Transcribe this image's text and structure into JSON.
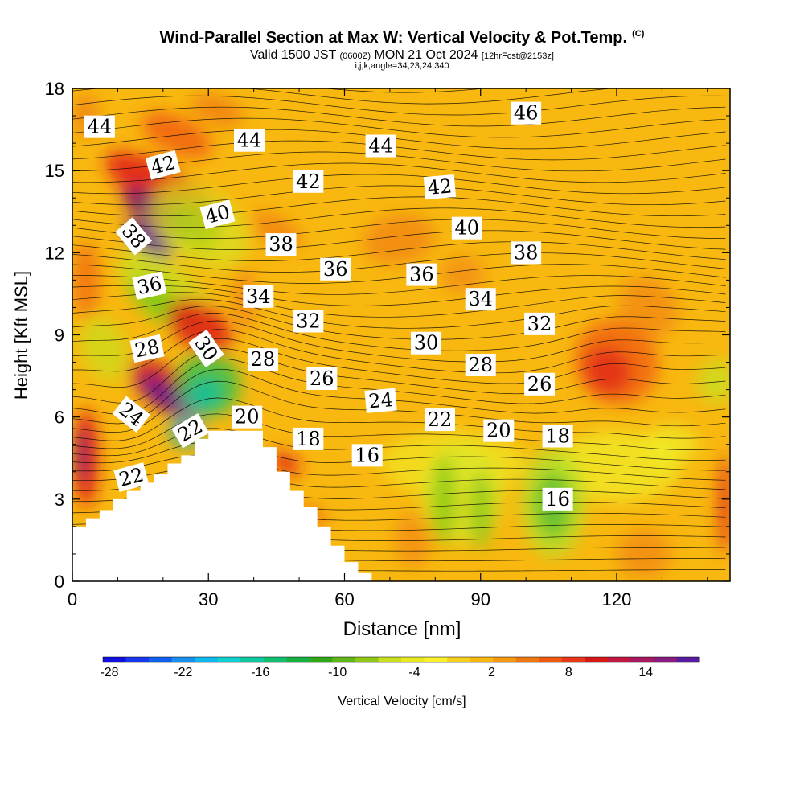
{
  "header": {
    "title": "Wind-Parallel Section at Max W: Vertical Velocity & Pot.Temp.",
    "copyright": "(C)",
    "valid_prefix": "Valid 1500 JST",
    "valid_utc": "(0600Z)",
    "valid_date": "MON 21 Oct 2024",
    "forecast": "[12hrFcst@2153z]",
    "indices": "i,j,k,angle=34,23,24,340"
  },
  "chart_data": {
    "type": "heatmap",
    "xlabel": "Distance [nm]",
    "ylabel": "Height [Kft MSL]",
    "xlim": [
      0,
      145
    ],
    "ylim": [
      0,
      18
    ],
    "x_ticks": [
      0,
      30,
      60,
      90,
      120
    ],
    "y_ticks": [
      0,
      3,
      6,
      9,
      12,
      15,
      18
    ],
    "x_tick_labels": [
      "0",
      "30",
      "60",
      "90",
      "120"
    ],
    "y_tick_labels": [
      "0",
      "3",
      "6",
      "9",
      "12",
      "15",
      "18"
    ],
    "terrain": [
      [
        0,
        2
      ],
      [
        3,
        2
      ],
      [
        3,
        2.3
      ],
      [
        6,
        2.3
      ],
      [
        6,
        2.6
      ],
      [
        9,
        2.6
      ],
      [
        9,
        3
      ],
      [
        12,
        3
      ],
      [
        12,
        3.3
      ],
      [
        15,
        3.3
      ],
      [
        15,
        3.6
      ],
      [
        18,
        3.6
      ],
      [
        18,
        3.9
      ],
      [
        21,
        3.9
      ],
      [
        21,
        4.3
      ],
      [
        24,
        4.3
      ],
      [
        24,
        4.6
      ],
      [
        27,
        4.6
      ],
      [
        27,
        5.2
      ],
      [
        30,
        5.2
      ],
      [
        30,
        5.5
      ],
      [
        42,
        5.5
      ],
      [
        42,
        4.9
      ],
      [
        45,
        4.9
      ],
      [
        45,
        4.0
      ],
      [
        48,
        4.0
      ],
      [
        48,
        3.3
      ],
      [
        51,
        3.3
      ],
      [
        51,
        2.7
      ],
      [
        54,
        2.7
      ],
      [
        54,
        2.0
      ],
      [
        57,
        2.0
      ],
      [
        57,
        1.3
      ],
      [
        60,
        1.3
      ],
      [
        60,
        0.7
      ],
      [
        63,
        0.7
      ],
      [
        63,
        0.3
      ],
      [
        66,
        0.3
      ],
      [
        66,
        0
      ]
    ],
    "theta_labels": [
      {
        "text": "44",
        "x": 6,
        "y": 16.6,
        "rot": 0
      },
      {
        "text": "42",
        "x": 20,
        "y": 15.2,
        "rot": -15
      },
      {
        "text": "38",
        "x": 13.5,
        "y": 12.6,
        "rot": 50
      },
      {
        "text": "40",
        "x": 32,
        "y": 13.4,
        "rot": -15
      },
      {
        "text": "44",
        "x": 39,
        "y": 16.1,
        "rot": 0
      },
      {
        "text": "42",
        "x": 52,
        "y": 14.6,
        "rot": 0
      },
      {
        "text": "44",
        "x": 68,
        "y": 15.9,
        "rot": 0
      },
      {
        "text": "42",
        "x": 81,
        "y": 14.4,
        "rot": -5
      },
      {
        "text": "46",
        "x": 100,
        "y": 17.1,
        "rot": 0
      },
      {
        "text": "40",
        "x": 87,
        "y": 12.9,
        "rot": 0
      },
      {
        "text": "38",
        "x": 46,
        "y": 12.3,
        "rot": 0
      },
      {
        "text": "38",
        "x": 100,
        "y": 12.0,
        "rot": 0
      },
      {
        "text": "36",
        "x": 17,
        "y": 10.8,
        "rot": -12
      },
      {
        "text": "36",
        "x": 58,
        "y": 11.4,
        "rot": 0
      },
      {
        "text": "36",
        "x": 77,
        "y": 11.2,
        "rot": 0
      },
      {
        "text": "34",
        "x": 41,
        "y": 10.4,
        "rot": 0
      },
      {
        "text": "34",
        "x": 90,
        "y": 10.3,
        "rot": 0
      },
      {
        "text": "32",
        "x": 52,
        "y": 9.5,
        "rot": 0
      },
      {
        "text": "32",
        "x": 103,
        "y": 9.4,
        "rot": 0
      },
      {
        "text": "30",
        "x": 78,
        "y": 8.7,
        "rot": 0
      },
      {
        "text": "28",
        "x": 16.5,
        "y": 8.5,
        "rot": -12
      },
      {
        "text": "30",
        "x": 29.5,
        "y": 8.5,
        "rot": 55
      },
      {
        "text": "28",
        "x": 42,
        "y": 8.1,
        "rot": 0
      },
      {
        "text": "28",
        "x": 90,
        "y": 7.9,
        "rot": 0
      },
      {
        "text": "26",
        "x": 55,
        "y": 7.4,
        "rot": 0
      },
      {
        "text": "26",
        "x": 103,
        "y": 7.2,
        "rot": 0
      },
      {
        "text": "24",
        "x": 13,
        "y": 6.1,
        "rot": 38
      },
      {
        "text": "24",
        "x": 68,
        "y": 6.6,
        "rot": -5
      },
      {
        "text": "22",
        "x": 26,
        "y": 5.5,
        "rot": -30
      },
      {
        "text": "20",
        "x": 38.5,
        "y": 6.0,
        "rot": 0
      },
      {
        "text": "22",
        "x": 81,
        "y": 5.9,
        "rot": 0
      },
      {
        "text": "20",
        "x": 94,
        "y": 5.5,
        "rot": 0
      },
      {
        "text": "18",
        "x": 52,
        "y": 5.2,
        "rot": 0
      },
      {
        "text": "18",
        "x": 107,
        "y": 5.3,
        "rot": 0
      },
      {
        "text": "16",
        "x": 65,
        "y": 4.6,
        "rot": 0
      },
      {
        "text": "16",
        "x": 107,
        "y": 3.0,
        "rot": 0
      },
      {
        "text": "22",
        "x": 13,
        "y": 3.8,
        "rot": -15
      }
    ],
    "velocity_blobs": [
      {
        "x": 20,
        "y": 14.3,
        "rx": 5,
        "ry": 2.4,
        "rot": -60,
        "color": "#e01818",
        "op": 0.85
      },
      {
        "x": 19,
        "y": 13.5,
        "rx": 3.5,
        "ry": 1.5,
        "rot": -60,
        "color": "#7a1870",
        "op": 0.9
      },
      {
        "x": 17,
        "y": 12.5,
        "rx": 2.5,
        "ry": 1.0,
        "rot": -55,
        "color": "#5a1aa0",
        "op": 0.9
      },
      {
        "x": 23,
        "y": 16.3,
        "rx": 4,
        "ry": 1.4,
        "rot": -65,
        "color": "#f05a10",
        "op": 0.8
      },
      {
        "x": 32,
        "y": 17.2,
        "rx": 3,
        "ry": 1.0,
        "rot": -70,
        "color": "#f07a10",
        "op": 0.8
      },
      {
        "x": 3,
        "y": 11,
        "rx": 3,
        "ry": 1.4,
        "rot": 0,
        "color": "#f06a10",
        "op": 0.8
      },
      {
        "x": 3,
        "y": 17,
        "rx": 3,
        "ry": 0.8,
        "rot": 0,
        "color": "#f07a10",
        "op": 0.7
      },
      {
        "x": 28,
        "y": 13,
        "rx": 8,
        "ry": 2.0,
        "rot": -55,
        "color": "#d8e020",
        "op": 0.75
      },
      {
        "x": 27,
        "y": 13,
        "rx": 5,
        "ry": 1.0,
        "rot": -55,
        "color": "#a8d018",
        "op": 0.7
      },
      {
        "x": 21,
        "y": 10.5,
        "rx": 6,
        "ry": 2.2,
        "rot": -50,
        "color": "#c8e020",
        "op": 0.8
      },
      {
        "x": 19,
        "y": 10.2,
        "rx": 3.5,
        "ry": 1.3,
        "rot": -50,
        "color": "#80c818",
        "op": 0.85
      },
      {
        "x": 7,
        "y": 8.5,
        "rx": 5,
        "ry": 1.2,
        "rot": -20,
        "color": "#c8e020",
        "op": 0.7
      },
      {
        "x": 28,
        "y": 9.3,
        "rx": 5,
        "ry": 1.3,
        "rot": -55,
        "color": "#e01818",
        "op": 0.85
      },
      {
        "x": 21,
        "y": 7.0,
        "rx": 4.5,
        "ry": 1.6,
        "rot": -55,
        "color": "#c81830",
        "op": 0.85
      },
      {
        "x": 20,
        "y": 6.8,
        "rx": 2.5,
        "ry": 1.0,
        "rot": -55,
        "color": "#6a1a90",
        "op": 0.9
      },
      {
        "x": 30,
        "y": 7.2,
        "rx": 7,
        "ry": 1.2,
        "rot": -40,
        "color": "#40c040",
        "op": 0.85
      },
      {
        "x": 29,
        "y": 6.8,
        "rx": 4.5,
        "ry": 0.6,
        "rot": -40,
        "color": "#10c0a0",
        "op": 0.85
      },
      {
        "x": 25,
        "y": 5.5,
        "rx": 3.5,
        "ry": 0.6,
        "rot": -35,
        "color": "#10b0c0",
        "op": 0.8
      },
      {
        "x": 3,
        "y": 4.5,
        "rx": 2.6,
        "ry": 1.8,
        "rot": 0,
        "color": "#e01818",
        "op": 0.9
      },
      {
        "x": 2,
        "y": 4.6,
        "rx": 1.2,
        "ry": 1.0,
        "rot": 0,
        "color": "#7a1870",
        "op": 0.95
      },
      {
        "x": 47,
        "y": 4.3,
        "rx": 2,
        "ry": 0.6,
        "rot": -60,
        "color": "#e01818",
        "op": 0.85
      },
      {
        "x": 53,
        "y": 2.4,
        "rx": 1.5,
        "ry": 0.6,
        "rot": -60,
        "color": "#f05a10",
        "op": 0.8
      },
      {
        "x": 45,
        "y": 12.8,
        "rx": 3,
        "ry": 1.0,
        "rot": -60,
        "color": "#f07a10",
        "op": 0.75
      },
      {
        "x": 38,
        "y": 10.3,
        "rx": 2.5,
        "ry": 1.2,
        "rot": 0,
        "color": "#f07a10",
        "op": 0.65
      },
      {
        "x": 72,
        "y": 12.5,
        "rx": 8,
        "ry": 0.9,
        "rot": -10,
        "color": "#f07a10",
        "op": 0.65
      },
      {
        "x": 86,
        "y": 11.2,
        "rx": 5,
        "ry": 0.7,
        "rot": 0,
        "color": "#f07a10",
        "op": 0.55
      },
      {
        "x": 120,
        "y": 8.0,
        "rx": 9,
        "ry": 1.6,
        "rot": -40,
        "color": "#f05a10",
        "op": 0.75
      },
      {
        "x": 118,
        "y": 7.7,
        "rx": 5,
        "ry": 0.9,
        "rot": -40,
        "color": "#e02818",
        "op": 0.8
      },
      {
        "x": 127,
        "y": 10,
        "rx": 6,
        "ry": 1.2,
        "rot": -40,
        "color": "#f07a10",
        "op": 0.6
      },
      {
        "x": 142,
        "y": 7.3,
        "rx": 4,
        "ry": 0.8,
        "rot": 0,
        "color": "#c8e020",
        "op": 0.8
      },
      {
        "x": 144,
        "y": 2.8,
        "rx": 1.6,
        "ry": 1.8,
        "rot": 0,
        "color": "#e02818",
        "op": 0.85
      },
      {
        "x": 120,
        "y": 4.2,
        "rx": 14,
        "ry": 1.3,
        "rot": 0,
        "color": "#f0f028",
        "op": 0.7
      },
      {
        "x": 84,
        "y": 4.3,
        "rx": 16,
        "ry": 1.2,
        "rot": 0,
        "color": "#f0f028",
        "op": 0.6
      },
      {
        "x": 86,
        "y": 3.2,
        "rx": 9,
        "ry": 1.8,
        "rot": 0,
        "color": "#d8e828",
        "op": 0.75
      },
      {
        "x": 82,
        "y": 3.0,
        "rx": 2.5,
        "ry": 1.6,
        "rot": 0,
        "color": "#88c818",
        "op": 0.85
      },
      {
        "x": 90,
        "y": 2.6,
        "rx": 2.5,
        "ry": 1.4,
        "rot": 0,
        "color": "#88c818",
        "op": 0.8
      },
      {
        "x": 106,
        "y": 2.9,
        "rx": 7,
        "ry": 2.0,
        "rot": 0,
        "color": "#b8e028",
        "op": 0.85
      },
      {
        "x": 106,
        "y": 2.8,
        "rx": 4,
        "ry": 1.2,
        "rot": 0,
        "color": "#60c030",
        "op": 0.9
      },
      {
        "x": 75,
        "y": 1.5,
        "rx": 4,
        "ry": 1.0,
        "rot": 0,
        "color": "#f07a10",
        "op": 0.55
      },
      {
        "x": 126,
        "y": 1.0,
        "rx": 6,
        "ry": 0.9,
        "rot": 0,
        "color": "#f07a10",
        "op": 0.6
      },
      {
        "x": 132,
        "y": 5.0,
        "rx": 6,
        "ry": 0.7,
        "rot": 0,
        "color": "#f0f028",
        "op": 0.7
      }
    ],
    "colorbar": {
      "title": "Vertical Velocity [cm/s]",
      "tick_labels": [
        "-28",
        "-22",
        "-16",
        "-10",
        "-4",
        "2",
        "8",
        "14"
      ],
      "colors": [
        "#1010e0",
        "#1838f0",
        "#1060f0",
        "#1890f0",
        "#10b8f0",
        "#10d0d0",
        "#10c8a0",
        "#10c070",
        "#18b040",
        "#30a818",
        "#60b818",
        "#90c818",
        "#c8e020",
        "#e8e820",
        "#f8f028",
        "#f8d020",
        "#f8b810",
        "#f89810",
        "#f07810",
        "#f05a10",
        "#e83818",
        "#d81818",
        "#c01840",
        "#a81860",
        "#881a80",
        "#5a1aa0"
      ]
    }
  }
}
